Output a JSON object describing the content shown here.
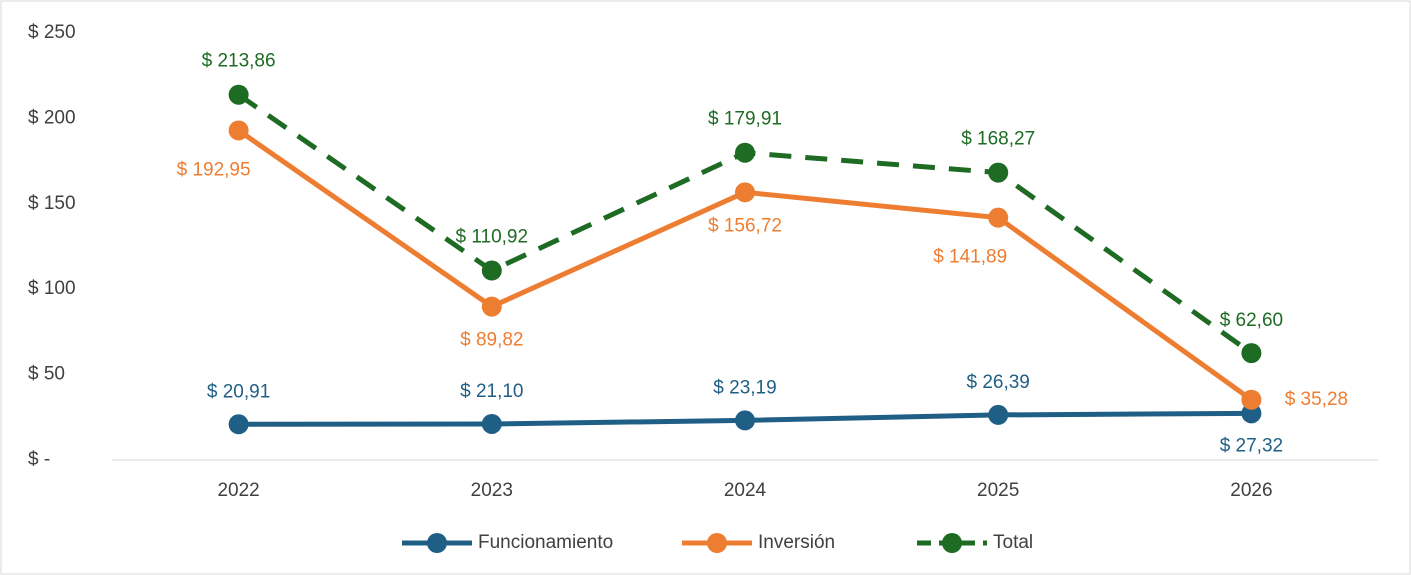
{
  "chart_data": {
    "type": "line",
    "categories": [
      "2022",
      "2023",
      "2024",
      "2025",
      "2026"
    ],
    "ylim": [
      0,
      250
    ],
    "yticks": [
      {
        "value": 0,
        "label": "$ -"
      },
      {
        "value": 50,
        "label": "$ 50"
      },
      {
        "value": 100,
        "label": "$ 100"
      },
      {
        "value": 150,
        "label": "$ 150"
      },
      {
        "value": 200,
        "label": "$ 200"
      },
      {
        "value": 250,
        "label": "$ 250"
      }
    ],
    "grid": false,
    "legend": "bottom",
    "series": [
      {
        "name": "Funcionamiento",
        "color": "#1f5f85",
        "dash": false,
        "values": [
          20.91,
          21.1,
          23.19,
          26.39,
          27.32
        ],
        "value_labels": [
          "$ 20,91",
          "$ 21,10",
          "$ 23,19",
          "$ 26,39",
          "$ 27,32"
        ]
      },
      {
        "name": "Inversión",
        "color": "#ed7d31",
        "dash": false,
        "values": [
          192.95,
          89.82,
          156.72,
          141.89,
          35.28
        ],
        "value_labels": [
          "$ 192,95",
          "$ 89,82",
          "$ 156,72",
          "$ 141,89",
          "$ 35,28"
        ]
      },
      {
        "name": "Total",
        "color": "#1e6b24",
        "dash": true,
        "values": [
          213.86,
          110.92,
          179.91,
          168.27,
          62.6
        ],
        "value_labels": [
          "$ 213,86",
          "$ 110,92",
          "$ 179,91",
          "$ 168,27",
          "$ 62,60"
        ]
      }
    ]
  }
}
